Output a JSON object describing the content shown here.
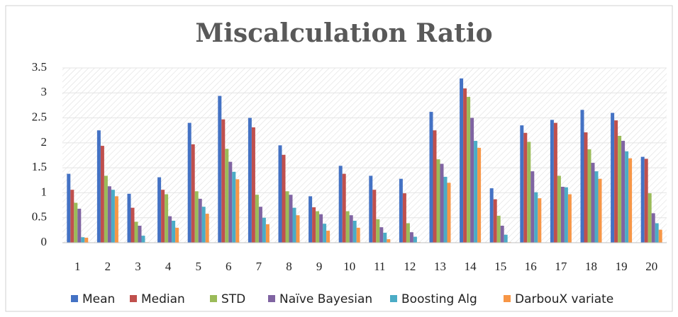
{
  "chart_data": {
    "type": "bar",
    "title": "Miscalculation Ratio",
    "categories": [
      "1",
      "2",
      "3",
      "4",
      "5",
      "6",
      "7",
      "8",
      "9",
      "10",
      "11",
      "12",
      "13",
      "14",
      "15",
      "16",
      "17",
      "18",
      "19",
      "20"
    ],
    "series": [
      {
        "name": "Mean",
        "color": "#4472c4",
        "values": [
          1.38,
          2.25,
          0.98,
          1.31,
          2.4,
          2.94,
          2.5,
          1.95,
          0.93,
          1.54,
          1.34,
          1.28,
          2.62,
          3.29,
          1.09,
          2.35,
          2.46,
          2.66,
          2.6,
          1.72
        ]
      },
      {
        "name": "Median",
        "color": "#c0504d",
        "values": [
          1.06,
          1.94,
          0.7,
          1.06,
          1.97,
          2.47,
          2.31,
          1.76,
          0.71,
          1.38,
          1.06,
          0.99,
          2.25,
          3.09,
          0.87,
          2.2,
          2.4,
          2.21,
          2.45,
          1.68
        ]
      },
      {
        "name": "STD",
        "color": "#9bbb59",
        "values": [
          0.8,
          1.34,
          0.42,
          0.97,
          1.03,
          1.88,
          0.96,
          1.03,
          0.63,
          0.63,
          0.47,
          0.39,
          1.67,
          2.92,
          0.54,
          2.02,
          1.34,
          1.87,
          2.14,
          0.99
        ]
      },
      {
        "name": "Naïve Bayesian",
        "color": "#8064a2",
        "values": [
          0.68,
          1.13,
          0.34,
          0.53,
          0.88,
          1.62,
          0.72,
          0.96,
          0.57,
          0.55,
          0.31,
          0.21,
          1.58,
          2.5,
          0.34,
          1.43,
          1.12,
          1.6,
          2.04,
          0.59
        ]
      },
      {
        "name": "Boosting Alg",
        "color": "#4bacc6",
        "values": [
          0.11,
          1.06,
          0.14,
          0.44,
          0.72,
          1.42,
          0.5,
          0.7,
          0.38,
          0.44,
          0.2,
          0.12,
          1.32,
          2.04,
          0.16,
          1.01,
          1.11,
          1.43,
          1.83,
          0.39
        ]
      },
      {
        "name": "DarbouX variate",
        "color": "#f79646",
        "values": [
          0.1,
          0.93,
          0.01,
          0.3,
          0.58,
          1.27,
          0.37,
          0.55,
          0.24,
          0.3,
          0.07,
          0.01,
          1.2,
          1.9,
          0.01,
          0.89,
          0.97,
          1.28,
          1.69,
          0.26
        ]
      }
    ],
    "ylim": [
      0,
      3.5
    ],
    "yticks": [
      0,
      0.5,
      1,
      1.5,
      2,
      2.5,
      3,
      3.5
    ],
    "grid": true,
    "legend": "bottom"
  }
}
